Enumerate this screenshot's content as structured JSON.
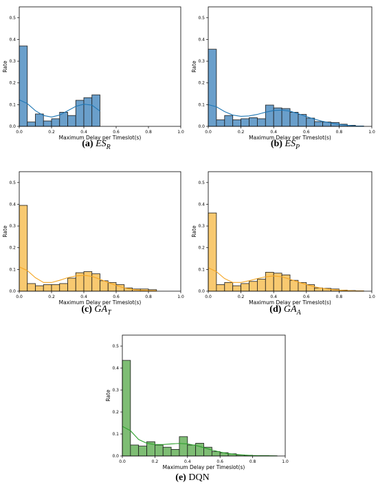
{
  "chart_data": [
    {
      "type": "bar",
      "panel_id": "a",
      "caption_tag": "(a)",
      "caption_symbol": "ES",
      "caption_sub": "R",
      "xlabel": "Maximum Delay per Timeslot(s)",
      "ylabel": "Rate",
      "xlim": [
        0,
        1
      ],
      "ylim": [
        0,
        0.55
      ],
      "xticks": [
        "0.0",
        "0.2",
        "0.4",
        "0.6",
        "0.8",
        "1.0"
      ],
      "yticks": [
        "0.0",
        "0.1",
        "0.2",
        "0.3",
        "0.4",
        "0.5"
      ],
      "bin_width": 0.05,
      "bin_starts": [
        0.0,
        0.05,
        0.1,
        0.15,
        0.2,
        0.25,
        0.3,
        0.35,
        0.4,
        0.45
      ],
      "values": [
        0.37,
        0.02,
        0.057,
        0.025,
        0.035,
        0.065,
        0.05,
        0.12,
        0.132,
        0.145
      ],
      "kde_x": [
        0.0,
        0.05,
        0.1,
        0.15,
        0.2,
        0.25,
        0.3,
        0.35,
        0.4,
        0.45,
        0.5
      ],
      "kde_y": [
        0.122,
        0.105,
        0.072,
        0.05,
        0.043,
        0.052,
        0.072,
        0.092,
        0.102,
        0.098,
        0.07
      ],
      "color": "#1f77b4",
      "fill": "#6a9fcb"
    },
    {
      "type": "bar",
      "panel_id": "b",
      "caption_tag": "(b)",
      "caption_symbol": "ES",
      "caption_sub": "P",
      "xlabel": "Maximum Delay per Timeslot(s)",
      "ylabel": "Rate",
      "xlim": [
        0,
        1
      ],
      "ylim": [
        0,
        0.55
      ],
      "xticks": [
        "0.0",
        "0.2",
        "0.4",
        "0.6",
        "0.8",
        "1.0"
      ],
      "yticks": [
        "0.0",
        "0.1",
        "0.2",
        "0.3",
        "0.4",
        "0.5"
      ],
      "bin_width": 0.05,
      "bin_starts": [
        0.0,
        0.05,
        0.1,
        0.15,
        0.2,
        0.25,
        0.3,
        0.35,
        0.4,
        0.45,
        0.5,
        0.55,
        0.6,
        0.65,
        0.7,
        0.75,
        0.8,
        0.85,
        0.9
      ],
      "values": [
        0.355,
        0.03,
        0.05,
        0.03,
        0.035,
        0.04,
        0.035,
        0.098,
        0.085,
        0.082,
        0.065,
        0.055,
        0.038,
        0.022,
        0.02,
        0.018,
        0.01,
        0.005,
        0.002
      ],
      "kde_x": [
        0.0,
        0.05,
        0.1,
        0.15,
        0.2,
        0.25,
        0.3,
        0.35,
        0.4,
        0.45,
        0.5,
        0.55,
        0.6,
        0.65,
        0.7,
        0.75,
        0.8,
        0.85,
        0.9,
        0.95
      ],
      "kde_y": [
        0.1,
        0.09,
        0.068,
        0.052,
        0.046,
        0.048,
        0.055,
        0.065,
        0.073,
        0.075,
        0.07,
        0.058,
        0.045,
        0.033,
        0.023,
        0.015,
        0.009,
        0.005,
        0.002,
        0.001
      ],
      "color": "#1f77b4",
      "fill": "#6a9fcb"
    },
    {
      "type": "bar",
      "panel_id": "c",
      "caption_tag": "(c)",
      "caption_symbol": "GA",
      "caption_sub": "T",
      "xlabel": "Maximum Delay per Timeslot(s)",
      "ylabel": "Rate",
      "xlim": [
        0,
        1
      ],
      "ylim": [
        0,
        0.55
      ],
      "xticks": [
        "0.0",
        "0.2",
        "0.4",
        "0.6",
        "0.8",
        "1.0"
      ],
      "yticks": [
        "0.0",
        "0.1",
        "0.2",
        "0.3",
        "0.4",
        "0.5"
      ],
      "bin_width": 0.05,
      "bin_starts": [
        0.0,
        0.05,
        0.1,
        0.15,
        0.2,
        0.25,
        0.3,
        0.35,
        0.4,
        0.45,
        0.5,
        0.55,
        0.6,
        0.65,
        0.7,
        0.75,
        0.8
      ],
      "values": [
        0.395,
        0.035,
        0.025,
        0.03,
        0.03,
        0.035,
        0.06,
        0.085,
        0.09,
        0.08,
        0.048,
        0.04,
        0.03,
        0.015,
        0.01,
        0.01,
        0.007
      ],
      "kde_x": [
        0.0,
        0.05,
        0.1,
        0.15,
        0.2,
        0.25,
        0.3,
        0.35,
        0.4,
        0.45,
        0.5,
        0.55,
        0.6,
        0.65,
        0.7,
        0.75,
        0.8,
        0.85
      ],
      "kde_y": [
        0.112,
        0.095,
        0.062,
        0.04,
        0.04,
        0.05,
        0.062,
        0.07,
        0.073,
        0.068,
        0.055,
        0.04,
        0.026,
        0.015,
        0.008,
        0.004,
        0.002,
        0.001
      ],
      "color": "#f5a623",
      "fill": "#f8c970"
    },
    {
      "type": "bar",
      "panel_id": "d",
      "caption_tag": "(d)",
      "caption_symbol": "GA",
      "caption_sub": "A",
      "xlabel": "Maximum Delay per Timeslot(s)",
      "ylabel": "Rate",
      "xlim": [
        0,
        1
      ],
      "ylim": [
        0,
        0.55
      ],
      "xticks": [
        "0.0",
        "0.2",
        "0.4",
        "0.6",
        "0.8",
        "1.0"
      ],
      "yticks": [
        "0.0",
        "0.1",
        "0.2",
        "0.3",
        "0.4",
        "0.5"
      ],
      "bin_width": 0.05,
      "bin_starts": [
        0.0,
        0.05,
        0.1,
        0.15,
        0.2,
        0.25,
        0.3,
        0.35,
        0.4,
        0.45,
        0.5,
        0.55,
        0.6,
        0.65,
        0.7,
        0.75,
        0.8,
        0.85,
        0.9
      ],
      "values": [
        0.36,
        0.03,
        0.04,
        0.025,
        0.035,
        0.045,
        0.055,
        0.087,
        0.083,
        0.075,
        0.05,
        0.04,
        0.03,
        0.015,
        0.013,
        0.01,
        0.005,
        0.003,
        0.002
      ],
      "kde_x": [
        0.0,
        0.05,
        0.1,
        0.15,
        0.2,
        0.25,
        0.3,
        0.35,
        0.4,
        0.45,
        0.5,
        0.55,
        0.6,
        0.65,
        0.7,
        0.75,
        0.8,
        0.85,
        0.9,
        0.95
      ],
      "kde_y": [
        0.108,
        0.09,
        0.058,
        0.04,
        0.04,
        0.048,
        0.058,
        0.066,
        0.07,
        0.066,
        0.055,
        0.042,
        0.03,
        0.02,
        0.013,
        0.008,
        0.005,
        0.003,
        0.001,
        0.001
      ],
      "color": "#f5a623",
      "fill": "#f8c970"
    },
    {
      "type": "bar",
      "panel_id": "e",
      "caption_tag": "(e)",
      "caption_symbol": "DQN",
      "caption_sub": "",
      "xlabel": "Maximum Delay per Timeslot(s)",
      "ylabel": "Rate",
      "xlim": [
        0,
        1
      ],
      "ylim": [
        0,
        0.55
      ],
      "xticks": [
        "0.0",
        "0.2",
        "0.4",
        "0.6",
        "0.8",
        "1.0"
      ],
      "yticks": [
        "0.0",
        "0.1",
        "0.2",
        "0.3",
        "0.4",
        "0.5"
      ],
      "bin_width": 0.05,
      "bin_starts": [
        0.0,
        0.05,
        0.1,
        0.15,
        0.2,
        0.25,
        0.3,
        0.35,
        0.4,
        0.45,
        0.5,
        0.55,
        0.6,
        0.65,
        0.7,
        0.75,
        0.8,
        0.85,
        0.9
      ],
      "values": [
        0.435,
        0.05,
        0.045,
        0.065,
        0.05,
        0.04,
        0.03,
        0.088,
        0.05,
        0.058,
        0.04,
        0.02,
        0.015,
        0.01,
        0.005,
        0.003,
        0.002,
        0.002,
        0.001
      ],
      "kde_x": [
        0.0,
        0.05,
        0.1,
        0.15,
        0.2,
        0.25,
        0.3,
        0.35,
        0.4,
        0.45,
        0.5,
        0.55,
        0.6,
        0.65,
        0.7,
        0.75,
        0.8,
        0.85,
        0.9,
        0.95
      ],
      "kde_y": [
        0.135,
        0.115,
        0.075,
        0.058,
        0.052,
        0.052,
        0.055,
        0.057,
        0.055,
        0.048,
        0.038,
        0.027,
        0.018,
        0.011,
        0.007,
        0.004,
        0.002,
        0.001,
        0.001,
        0.0
      ],
      "color": "#2ca02c",
      "fill": "#7ebd74"
    }
  ]
}
